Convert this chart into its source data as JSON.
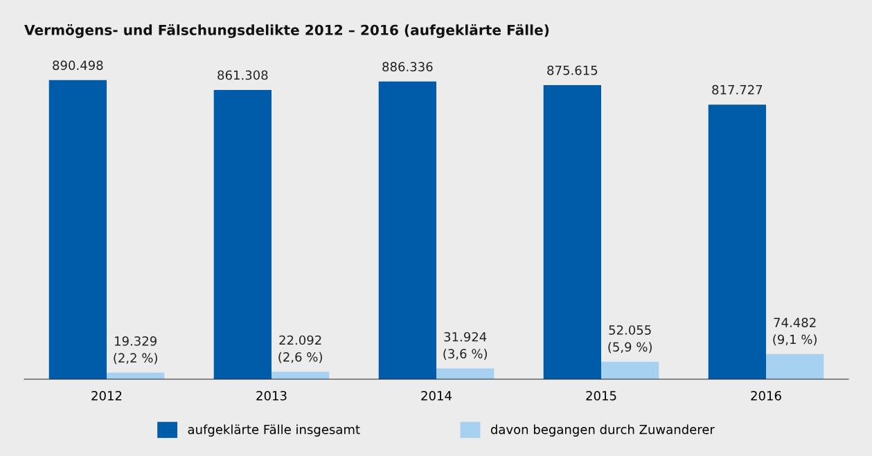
{
  "chart_data": {
    "type": "bar",
    "title": "Vermögens- und Fälschungsdelikte 2012 – 2016 (aufgeklärte Fälle)",
    "categories": [
      "2012",
      "2013",
      "2014",
      "2015",
      "2016"
    ],
    "series": [
      {
        "name": "aufgeklärte Fälle insgesamt",
        "color": "#005ca9",
        "values": [
          890498,
          861308,
          886336,
          875615,
          817727
        ],
        "value_labels": [
          "890.498",
          "861.308",
          "886.336",
          "875.615",
          "817.727"
        ]
      },
      {
        "name": "davon begangen durch Zuwanderer",
        "color": "#a6d1f0",
        "values": [
          19329,
          22092,
          31924,
          52055,
          74482
        ],
        "value_labels": [
          "19.329\n(2,2 %)",
          "22.092\n(2,6 %)",
          "31.924\n(3,6 %)",
          "52.055\n(5,9 %)",
          "74.482\n(9,1 %)"
        ]
      }
    ],
    "grid": false,
    "legend": "bottom"
  }
}
